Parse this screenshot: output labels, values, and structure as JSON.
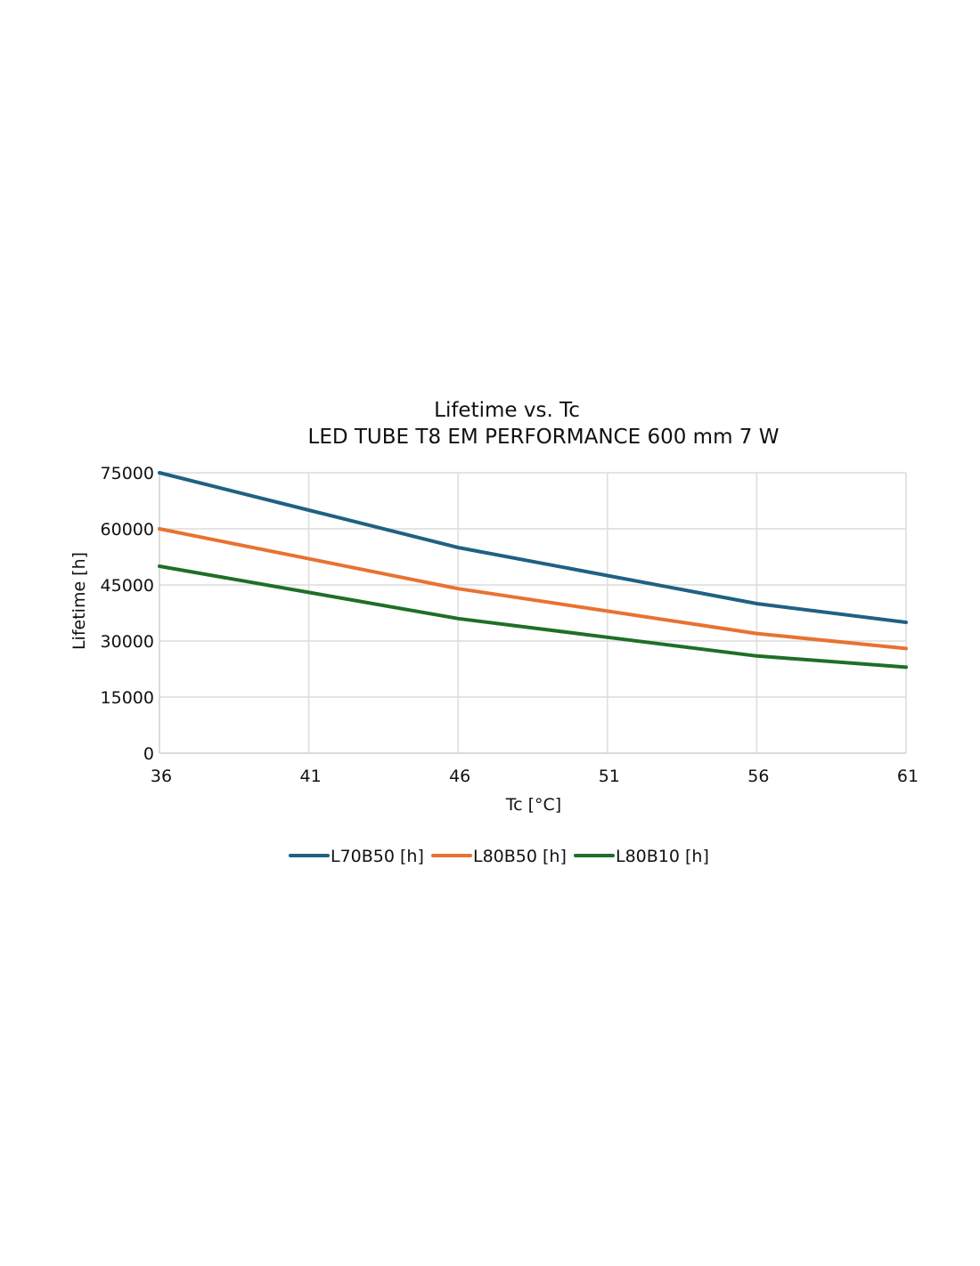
{
  "chart_data": {
    "type": "line",
    "title": "Lifetime vs. Tc",
    "subtitle": "LED TUBE T8 EM PERFORMANCE 600 mm 7 W",
    "xlabel": "Tc [°C]",
    "ylabel": "Lifetime [h]",
    "x": [
      36,
      41,
      46,
      51,
      56,
      61
    ],
    "x_tick_labels": [
      "36",
      "41",
      "46",
      "51",
      "56",
      "61"
    ],
    "y_tick_labels": [
      "0",
      "15000",
      "30000",
      "45000",
      "60000",
      "75000"
    ],
    "y_ticks": [
      0,
      15000,
      30000,
      45000,
      60000,
      75000
    ],
    "xlim": [
      36,
      61
    ],
    "ylim": [
      0,
      75000
    ],
    "grid": true,
    "legend_position": "bottom",
    "series": [
      {
        "name": "L70B50 [h]",
        "color": "#1f6184",
        "values": [
          75000,
          65000,
          55000,
          47500,
          40000,
          35000
        ]
      },
      {
        "name": "L80B50 [h]",
        "color": "#e87232",
        "values": [
          60000,
          52000,
          44000,
          38000,
          32000,
          28000
        ]
      },
      {
        "name": "L80B10 [h]",
        "color": "#1f6f26",
        "values": [
          50000,
          43000,
          36000,
          31000,
          26000,
          23000
        ]
      }
    ]
  }
}
